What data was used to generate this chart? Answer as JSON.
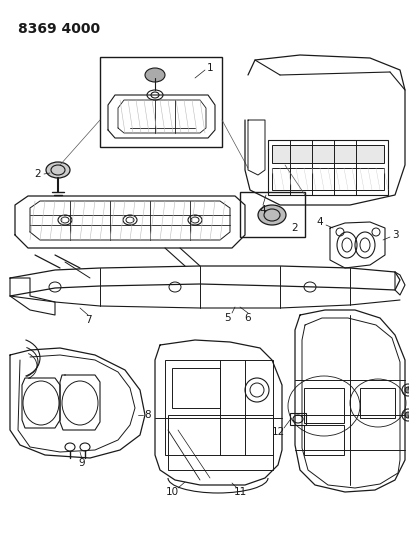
{
  "title_text": "8369 4000",
  "bg_color": "#ffffff",
  "line_color": "#1a1a1a",
  "title_fontsize": 10,
  "label_fontsize": 7.5,
  "fig_width": 4.1,
  "fig_height": 5.33,
  "dpi": 100
}
